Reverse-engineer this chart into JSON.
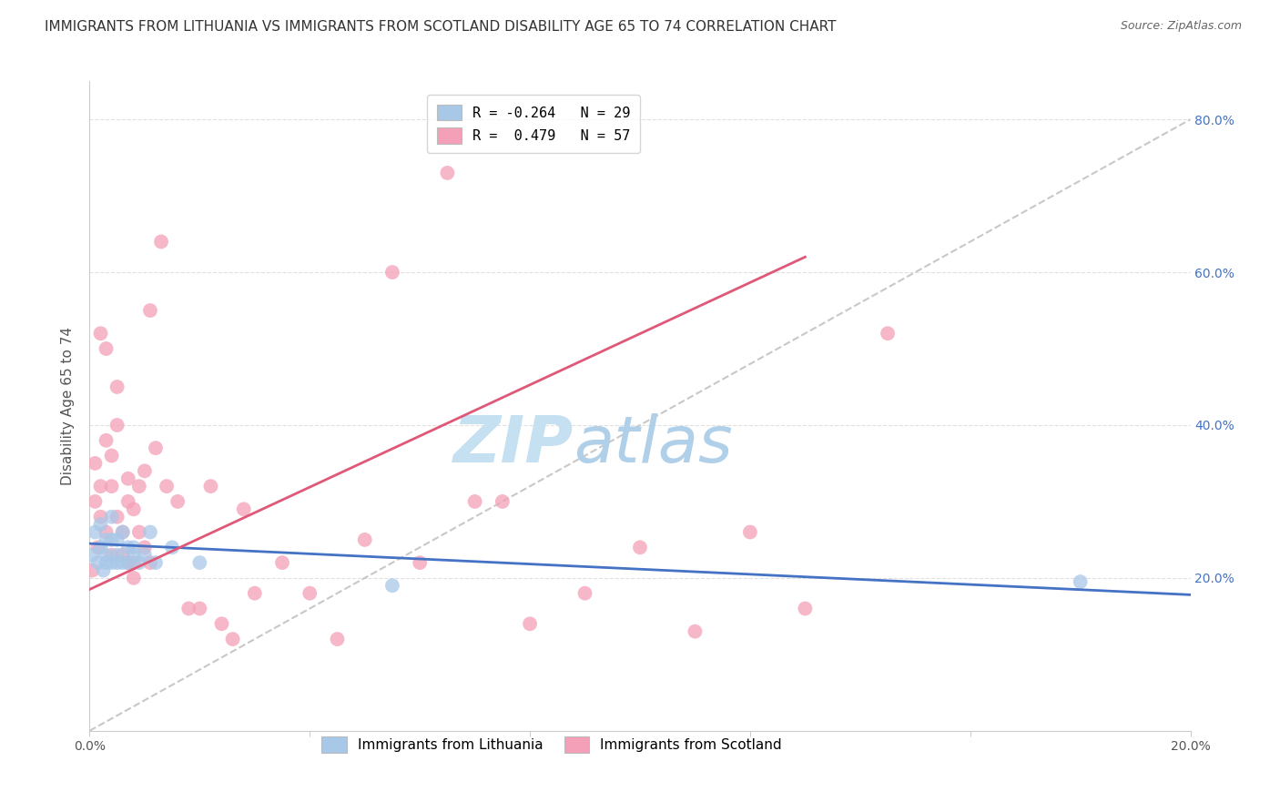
{
  "title": "IMMIGRANTS FROM LITHUANIA VS IMMIGRANTS FROM SCOTLAND DISABILITY AGE 65 TO 74 CORRELATION CHART",
  "source": "Source: ZipAtlas.com",
  "ylabel": "Disability Age 65 to 74",
  "xlim": [
    0.0,
    0.2
  ],
  "ylim": [
    0.0,
    0.85
  ],
  "yticks": [
    0.0,
    0.2,
    0.4,
    0.6,
    0.8
  ],
  "ytick_labels_right": [
    "",
    "20.0%",
    "40.0%",
    "60.0%",
    "80.0%"
  ],
  "xticks": [
    0.0,
    0.04,
    0.08,
    0.12,
    0.16,
    0.2
  ],
  "xtick_labels": [
    "0.0%",
    "",
    "",
    "",
    "",
    "20.0%"
  ],
  "legend_blue_label": "R = -0.264   N = 29",
  "legend_pink_label": "R =  0.479   N = 57",
  "scatter_blue_color": "#a8c8e8",
  "scatter_pink_color": "#f4a0b8",
  "line_blue_color": "#4472c4",
  "line_pink_color": "#e05878",
  "diagonal_color": "#c8c8c8",
  "watermark_zip": "ZIP",
  "watermark_atlas": "atlas",
  "blue_points_x": [
    0.0005,
    0.001,
    0.0015,
    0.002,
    0.002,
    0.0025,
    0.003,
    0.003,
    0.003,
    0.004,
    0.004,
    0.004,
    0.005,
    0.005,
    0.005,
    0.006,
    0.006,
    0.007,
    0.007,
    0.008,
    0.008,
    0.009,
    0.01,
    0.011,
    0.012,
    0.015,
    0.02,
    0.055,
    0.18
  ],
  "blue_points_y": [
    0.23,
    0.26,
    0.22,
    0.24,
    0.27,
    0.21,
    0.23,
    0.25,
    0.22,
    0.22,
    0.25,
    0.28,
    0.23,
    0.25,
    0.22,
    0.26,
    0.22,
    0.24,
    0.22,
    0.23,
    0.24,
    0.22,
    0.23,
    0.26,
    0.22,
    0.24,
    0.22,
    0.19,
    0.195
  ],
  "pink_points_x": [
    0.0005,
    0.001,
    0.001,
    0.0015,
    0.002,
    0.002,
    0.002,
    0.003,
    0.003,
    0.003,
    0.004,
    0.004,
    0.004,
    0.005,
    0.005,
    0.005,
    0.006,
    0.006,
    0.007,
    0.007,
    0.007,
    0.008,
    0.008,
    0.008,
    0.009,
    0.009,
    0.01,
    0.01,
    0.011,
    0.011,
    0.012,
    0.013,
    0.014,
    0.016,
    0.018,
    0.02,
    0.022,
    0.024,
    0.026,
    0.028,
    0.03,
    0.035,
    0.04,
    0.045,
    0.05,
    0.055,
    0.06,
    0.065,
    0.07,
    0.075,
    0.08,
    0.09,
    0.1,
    0.11,
    0.12,
    0.13,
    0.145
  ],
  "pink_points_y": [
    0.21,
    0.3,
    0.35,
    0.24,
    0.32,
    0.28,
    0.52,
    0.5,
    0.38,
    0.26,
    0.32,
    0.36,
    0.23,
    0.4,
    0.45,
    0.28,
    0.26,
    0.23,
    0.3,
    0.33,
    0.22,
    0.29,
    0.22,
    0.2,
    0.26,
    0.32,
    0.34,
    0.24,
    0.55,
    0.22,
    0.37,
    0.64,
    0.32,
    0.3,
    0.16,
    0.16,
    0.32,
    0.14,
    0.12,
    0.29,
    0.18,
    0.22,
    0.18,
    0.12,
    0.25,
    0.6,
    0.22,
    0.73,
    0.3,
    0.3,
    0.14,
    0.18,
    0.24,
    0.13,
    0.26,
    0.16,
    0.52
  ],
  "blue_line_x": [
    0.0,
    0.2
  ],
  "blue_line_y": [
    0.245,
    0.178
  ],
  "pink_line_x": [
    0.0,
    0.13
  ],
  "pink_line_y": [
    0.185,
    0.62
  ],
  "diag_line_x": [
    0.0,
    0.2
  ],
  "diag_line_y": [
    0.0,
    0.8
  ],
  "background_color": "#ffffff",
  "grid_color": "#e0e0e0",
  "title_fontsize": 11,
  "axis_label_fontsize": 11,
  "tick_fontsize": 10,
  "source_fontsize": 9,
  "legend_fontsize": 11,
  "watermark_fontsize_zip": 52,
  "watermark_fontsize_atlas": 52,
  "watermark_color": "#daeef8",
  "right_ytick_color": "#4472c4",
  "legend_bottom_labels": [
    "Immigrants from Lithuania",
    "Immigrants from Scotland"
  ]
}
